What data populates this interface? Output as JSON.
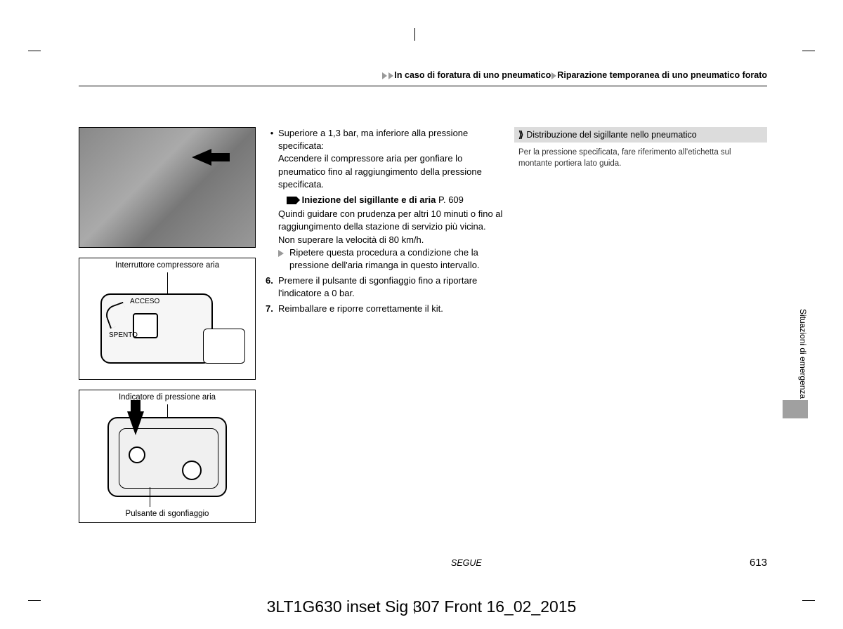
{
  "breadcrumb": {
    "part1": "In caso di foratura di uno pneumatico",
    "part2": "Riparazione temporanea di uno pneumatico forato"
  },
  "figures": {
    "diagram1_title": "Interruttore compressore aria",
    "diagram1_on": "ACCESO",
    "diagram1_off": "SPENTO",
    "diagram2_title": "Indicatore di pressione aria",
    "diagram2_bottom": "Pulsante di sgonfiaggio"
  },
  "mid": {
    "bullet1_lead": "Superiore a 1,3 bar, ma inferiore alla pressione specificata:",
    "bullet1_body": "Accendere il compressore aria per gonfiare lo pneumatico fino al raggiungimento della pressione specificata.",
    "xref_label": "Iniezione del sigillante e di aria",
    "xref_page": "P. 609",
    "bullet1_cont1": "Quindi guidare con prudenza per altri 10 minuti o fino al raggiungimento della stazione di servizio più vicina.",
    "bullet1_cont2": "Non superare la velocità di 80 km/h.",
    "bullet1_repeat": "Ripetere questa procedura a condizione che la pressione dell'aria rimanga in questo intervallo.",
    "step6_num": "6.",
    "step6": "Premere il pulsante di sgonfiaggio fino a riportare l'indicatore a 0 bar.",
    "step7_num": "7.",
    "step7": "Reimballare e riporre correttamente il kit."
  },
  "right": {
    "header": "Distribuzione del sigillante nello pneumatico",
    "body": "Per la pressione specificata, fare riferimento all'etichetta sul montante portiera lato guida."
  },
  "side_tab": "Situazioni di emergenza",
  "segue": "SEGUE",
  "pagenum": "613",
  "imprint": "3LT1G630 inset Sig 307 Front 16_02_2015"
}
